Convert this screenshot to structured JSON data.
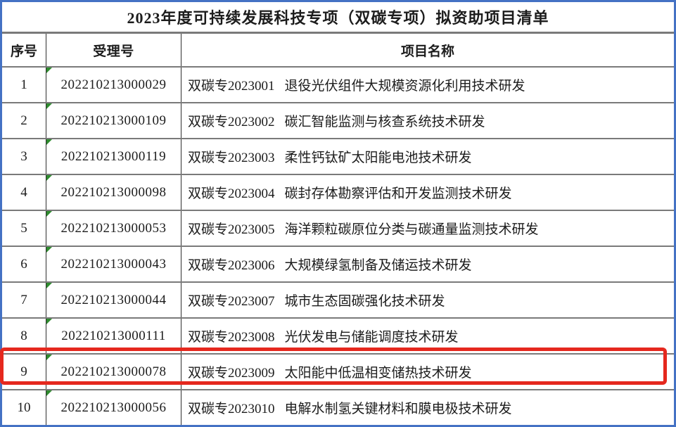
{
  "title": "2023年度可持续发展科技专项（双碳专项）拟资助项目清单",
  "columns": {
    "no": "序号",
    "acceptance": "受理号",
    "name": "项目名称"
  },
  "rows": [
    {
      "no": "1",
      "acceptance": "202210213000029",
      "code": "双碳专2023001",
      "name": "退役光伏组件大规模资源化利用技术研发"
    },
    {
      "no": "2",
      "acceptance": "202210213000109",
      "code": "双碳专2023002",
      "name": "碳汇智能监测与核查系统技术研发"
    },
    {
      "no": "3",
      "acceptance": "202210213000119",
      "code": "双碳专2023003",
      "name": "柔性钙钛矿太阳能电池技术研发"
    },
    {
      "no": "4",
      "acceptance": "202210213000098",
      "code": "双碳专2023004",
      "name": "碳封存体勘察评估和开发监测技术研发"
    },
    {
      "no": "5",
      "acceptance": "202210213000053",
      "code": "双碳专2023005",
      "name": "海洋颗粒碳原位分类与碳通量监测技术研发"
    },
    {
      "no": "6",
      "acceptance": "202210213000043",
      "code": "双碳专2023006",
      "name": "大规模绿氢制备及储运技术研发"
    },
    {
      "no": "7",
      "acceptance": "202210213000044",
      "code": "双碳专2023007",
      "name": "城市生态固碳强化技术研发"
    },
    {
      "no": "8",
      "acceptance": "202210213000111",
      "code": "双碳专2023008",
      "name": "光伏发电与储能调度技术研发"
    },
    {
      "no": "9",
      "acceptance": "202210213000078",
      "code": "双碳专2023009",
      "name": "太阳能中低温相变储热技术研发",
      "highlighted": true
    },
    {
      "no": "10",
      "acceptance": "202210213000056",
      "code": "双碳专2023010",
      "name": "电解水制氢关键材料和膜电极技术研发"
    }
  ],
  "highlight": {
    "highlighted_row_no": "9"
  },
  "colors": {
    "outer_border": "#4472C4",
    "separator": "#7a7a7a",
    "grid_line": "#2f2f2f",
    "highlight_red": "#e5281e",
    "triangle_green": "#2e8b2e",
    "text": "#1c1c1c"
  }
}
